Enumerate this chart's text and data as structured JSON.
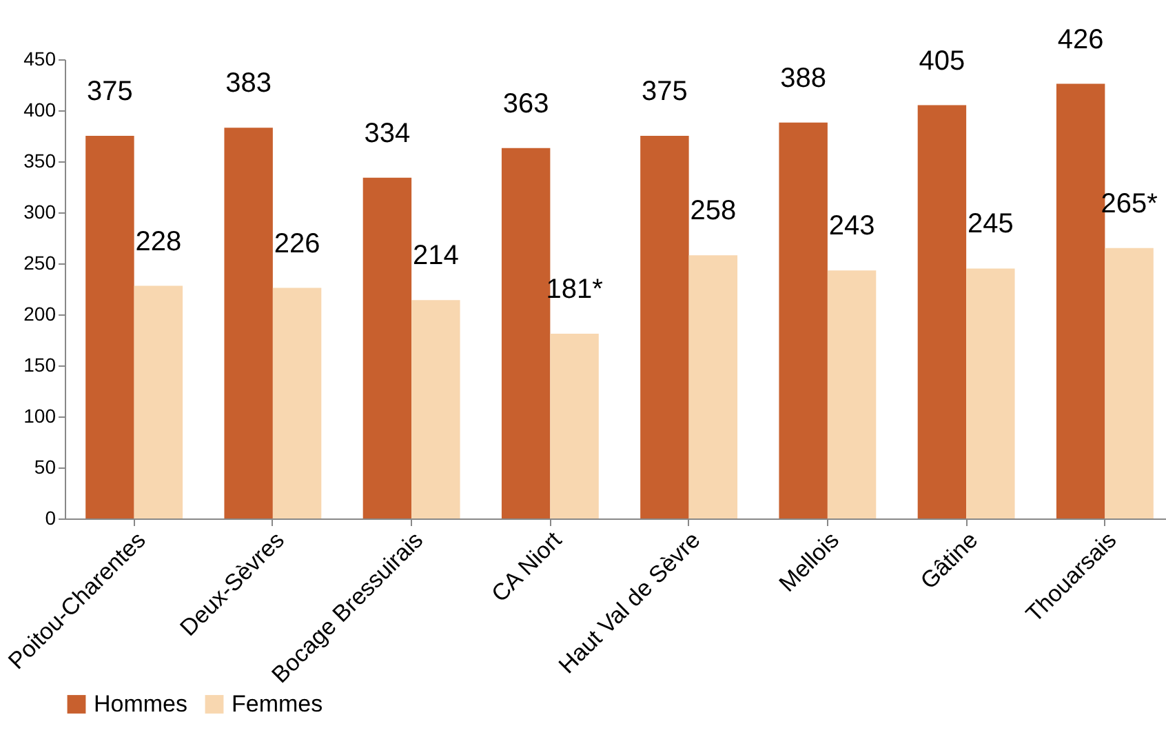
{
  "chart_data": {
    "type": "bar",
    "categories": [
      "Poitou-Charentes",
      "Deux-Sèvres",
      "Bocage Bressuirais",
      "CA Niort",
      "Haut Val de Sèvre",
      "Mellois",
      "Gâtine",
      "Thouarsais"
    ],
    "series": [
      {
        "name": "Hommes",
        "color": "#c8602e",
        "values": [
          375,
          383,
          334,
          363,
          375,
          388,
          405,
          426
        ],
        "value_labels": [
          "375",
          "383",
          "334",
          "363",
          "375",
          "388",
          "405",
          "426"
        ]
      },
      {
        "name": "Femmes",
        "color": "#f8d7b0",
        "values": [
          228,
          226,
          214,
          181,
          258,
          243,
          245,
          265
        ],
        "value_labels": [
          "228",
          "226",
          "214",
          "181*",
          "258",
          "243",
          "245",
          "265*"
        ]
      }
    ],
    "ylim": [
      0,
      450
    ],
    "yticks": [
      0,
      50,
      100,
      150,
      200,
      250,
      300,
      350,
      400,
      450
    ],
    "grid": false,
    "legend": "bottom"
  }
}
